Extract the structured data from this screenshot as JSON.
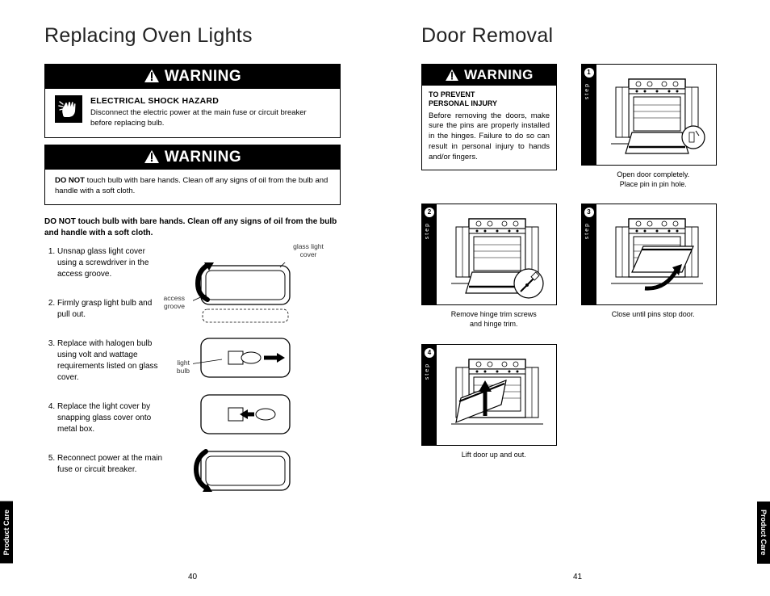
{
  "left": {
    "title": "Replacing Oven Lights",
    "warning1": {
      "header": "WARNING",
      "subhead": "ELECTRICAL SHOCK HAZARD",
      "text": "Disconnect the electric power at the main fuse or circuit breaker before replacing bulb."
    },
    "warning2": {
      "header": "WARNING",
      "bold": "DO NOT",
      "text": " touch bulb with bare hands. Clean off any signs of oil from the bulb and handle with a soft cloth."
    },
    "note": "DO NOT touch bulb with bare hands. Clean off any signs of oil from the bulb and handle with a soft cloth.",
    "steps": [
      "Unsnap glass light cover using a screwdriver in the access groove.",
      "Firmly grasp light bulb and pull out.",
      "Replace with halogen bulb using volt and wattage requirements listed on glass cover.",
      "Replace the light cover by snapping glass cover onto metal box.",
      "Reconnect power at the main fuse or circuit breaker."
    ],
    "labels": {
      "glass_cover": "glass light\ncover",
      "access_groove": "access\ngroove",
      "light_bulb": "light\nbulb"
    },
    "page_num": "40"
  },
  "right": {
    "title": "Door Removal",
    "warning": {
      "header": "WARNING",
      "subhead": "TO PREVENT\nPERSONAL INJURY",
      "text": "Before removing the doors, make sure the pins are properly installed in the hinges. Failure to do so can result in personal injury to hands and/or fingers."
    },
    "steps": {
      "s1": {
        "num": "1",
        "label": "step",
        "caption": "Open door completely.\nPlace pin in pin hole."
      },
      "s2": {
        "num": "2",
        "label": "step",
        "caption": "Remove hinge trim screws\nand hinge trim."
      },
      "s3": {
        "num": "3",
        "label": "step",
        "caption": "Close until pins stop door."
      },
      "s4": {
        "num": "4",
        "label": "step",
        "caption": "Lift door up and out."
      }
    },
    "page_num": "41"
  },
  "tab": "Product Care",
  "style": {
    "black": "#000000",
    "white": "#ffffff",
    "body_font_size_pt": 10,
    "title_font_size_pt": 25,
    "title_weight": 300
  }
}
